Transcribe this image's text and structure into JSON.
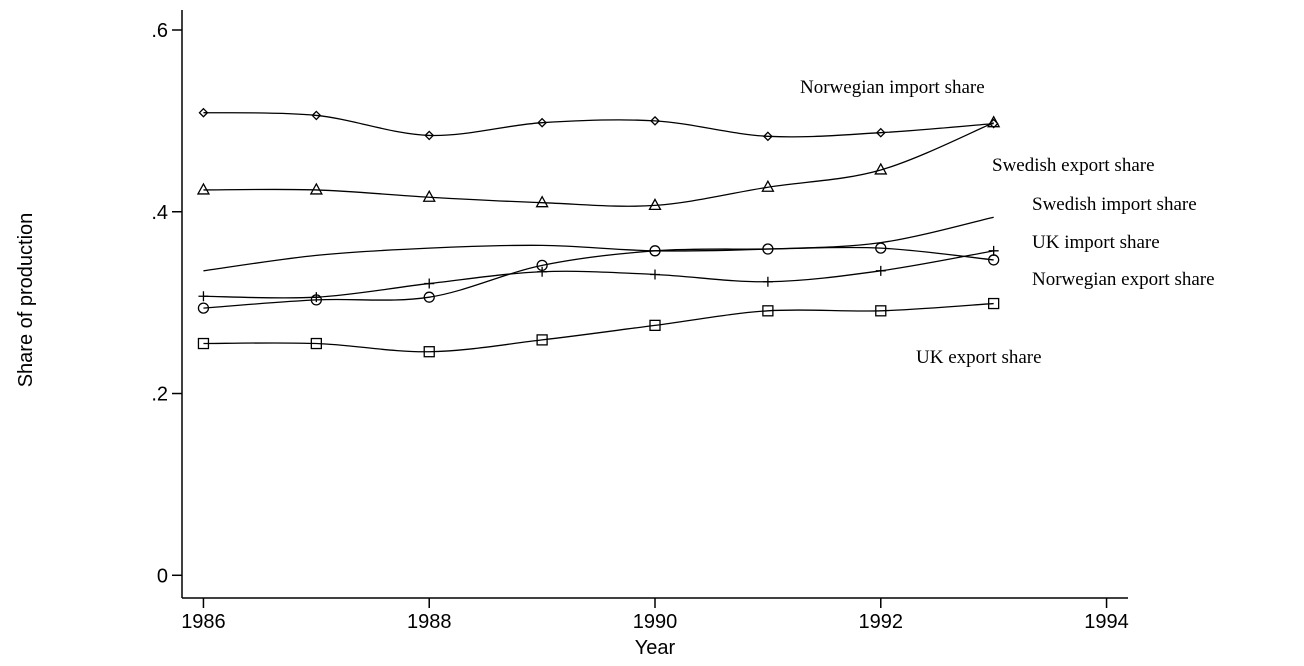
{
  "chart_data": {
    "type": "line",
    "x_label": "Year",
    "y_label": "Share of production",
    "x": [
      1986,
      1987,
      1988,
      1989,
      1990,
      1991,
      1992,
      1993
    ],
    "xlim": [
      1985.81,
      1994.19
    ],
    "xticks": [
      1986,
      1988,
      1990,
      1992,
      1994
    ],
    "ylim": [
      -0.025,
      0.622
    ],
    "yticks": [
      0,
      {
        "value": 0.2,
        "label": ".2"
      },
      {
        "value": 0.4,
        "label": ".4"
      },
      {
        "value": 0.6,
        "label": ".6"
      }
    ],
    "grid": false,
    "series": [
      {
        "name": "Norwegian import share",
        "color": "#000000",
        "marker": "diamond",
        "values": [
          0.509,
          0.506,
          0.484,
          0.498,
          0.5,
          0.483,
          0.487,
          0.497
        ]
      },
      {
        "name": "Swedish export share",
        "color": "#000000",
        "marker": "triangle",
        "values": [
          0.424,
          0.424,
          0.416,
          0.41,
          0.407,
          0.427,
          0.446,
          0.498
        ]
      },
      {
        "name": "Swedish import share",
        "color": "#000000",
        "marker": "none",
        "values": [
          0.335,
          0.352,
          0.36,
          0.363,
          0.357,
          0.359,
          0.366,
          0.394
        ]
      },
      {
        "name": "UK import share",
        "color": "#000000",
        "marker": "circle",
        "values": [
          0.294,
          0.303,
          0.306,
          0.341,
          0.357,
          0.359,
          0.36,
          0.347
        ]
      },
      {
        "name": "Norwegian export share",
        "color": "#000000",
        "marker": "plus",
        "values": [
          0.307,
          0.306,
          0.321,
          0.334,
          0.331,
          0.323,
          0.335,
          0.357
        ]
      },
      {
        "name": "UK export share",
        "color": "#000000",
        "marker": "square",
        "values": [
          0.255,
          0.255,
          0.246,
          0.259,
          0.275,
          0.291,
          0.291,
          0.299
        ]
      }
    ]
  }
}
